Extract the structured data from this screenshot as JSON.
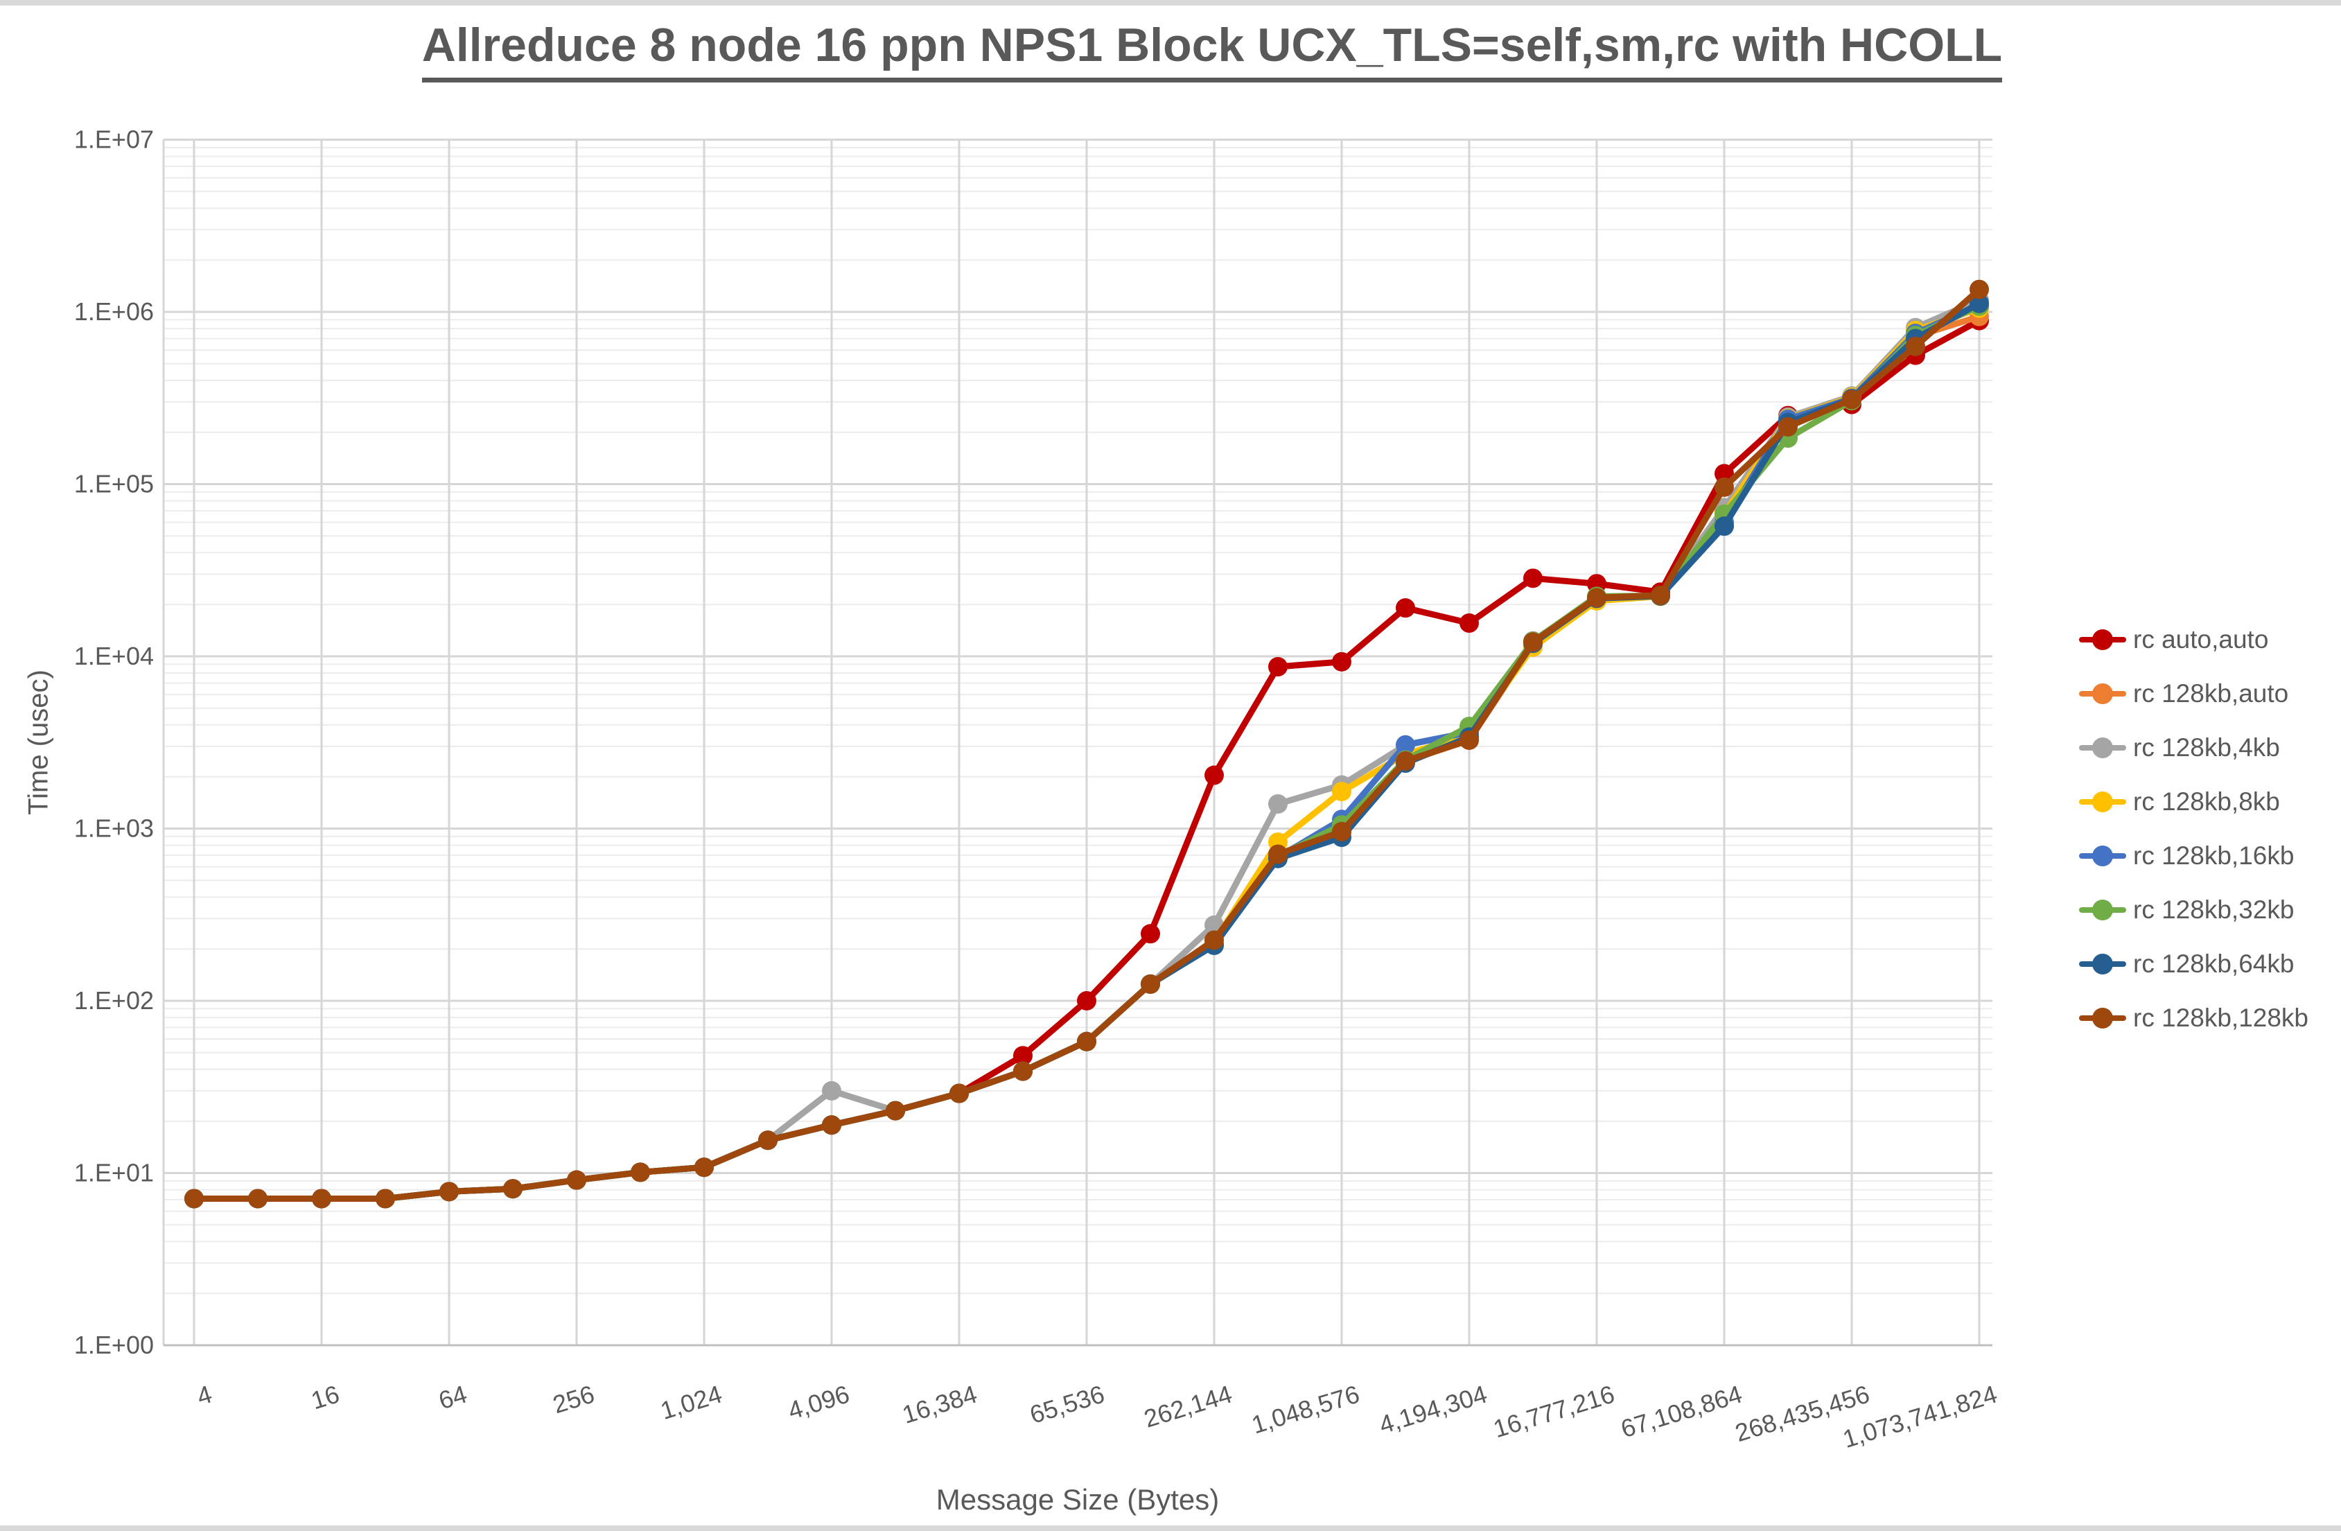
{
  "chart_data": {
    "type": "line",
    "title": "Allreduce 8 node 16 ppn NPS1 Block UCX_TLS=self,sm,rc with HCOLL",
    "xlabel": "Message Size (Bytes)",
    "ylabel": "Time (usec)",
    "x_scale": "log2",
    "y_scale": "log10",
    "ylim": [
      1,
      10000000
    ],
    "grid": "major horizontal+vertical, minor log horizontal",
    "legend_position": "right",
    "x": [
      4,
      8,
      16,
      32,
      64,
      128,
      256,
      512,
      1024,
      2048,
      4096,
      8192,
      16384,
      32768,
      65536,
      131072,
      262144,
      524288,
      1048576,
      2097152,
      4194304,
      8388608,
      16777216,
      33554432,
      67108864,
      134217728,
      268435456,
      536870912,
      1073741824
    ],
    "x_tick_values": [
      4,
      16,
      64,
      256,
      1024,
      4096,
      16384,
      65536,
      262144,
      1048576,
      4194304,
      16777216,
      67108864,
      268435456,
      1073741824
    ],
    "x_tick_labels": [
      "4",
      "16",
      "64",
      "256",
      "1,024",
      "4,096",
      "16,384",
      "65,536",
      "262,144",
      "1,048,576",
      "4,194,304",
      "16,777,216",
      "67,108,864",
      "268,435,456",
      "1,073,741,824"
    ],
    "y_tick_labels": [
      "1.E+00",
      "1.E+01",
      "1.E+02",
      "1.E+03",
      "1.E+04",
      "1.E+05",
      "1.E+06",
      "1.E+07"
    ],
    "series": [
      {
        "name": "rc auto,auto",
        "color": "#C00000",
        "values": [
          7.1,
          7.1,
          7.1,
          7.1,
          7.8,
          8.1,
          9.1,
          10.1,
          10.8,
          15.5,
          19,
          23,
          29,
          48,
          100,
          245,
          2040,
          8700,
          9300,
          19100,
          15600,
          28400,
          26400,
          23600,
          115000,
          250000,
          290000,
          560000,
          890000
        ]
      },
      {
        "name": "rc 128kb,auto",
        "color": "#ED7D31",
        "values": [
          7.1,
          7.1,
          7.1,
          7.1,
          7.8,
          8.1,
          9.1,
          10.1,
          10.8,
          15.5,
          19,
          23,
          29,
          39,
          58,
          125,
          215,
          700,
          950,
          2450,
          3260,
          11800,
          21800,
          22400,
          70000,
          225000,
          318000,
          720000,
          940000
        ]
      },
      {
        "name": "rc 128kb,4kb",
        "color": "#A5A5A5",
        "values": [
          7.1,
          7.1,
          7.1,
          7.1,
          7.8,
          8.1,
          9.1,
          10.1,
          10.8,
          15.5,
          30,
          23,
          29,
          39,
          58,
          125,
          275,
          1390,
          1790,
          3050,
          3620,
          12300,
          21900,
          22500,
          73000,
          245000,
          325000,
          810000,
          1170000
        ]
      },
      {
        "name": "rc 128kb,8kb",
        "color": "#FFC000",
        "values": [
          7.1,
          7.1,
          7.1,
          7.1,
          7.8,
          8.1,
          9.1,
          10.1,
          10.8,
          15.5,
          19,
          23,
          29,
          39,
          58,
          125,
          220,
          834,
          1640,
          2700,
          3500,
          11300,
          21000,
          22300,
          67000,
          240000,
          320000,
          780000,
          1050000
        ]
      },
      {
        "name": "rc 128kb,16kb",
        "color": "#4472C4",
        "values": [
          7.1,
          7.1,
          7.1,
          7.1,
          7.8,
          8.1,
          9.1,
          10.1,
          10.8,
          15.5,
          19,
          23,
          29,
          39,
          58,
          125,
          212,
          680,
          1130,
          3060,
          3620,
          12000,
          21900,
          22500,
          60000,
          238000,
          315000,
          750000,
          1100000
        ]
      },
      {
        "name": "rc 128kb,32kb",
        "color": "#70AD47",
        "values": [
          7.1,
          7.1,
          7.1,
          7.1,
          7.8,
          8.1,
          9.1,
          10.1,
          10.8,
          15.5,
          19,
          23,
          29,
          39,
          58,
          125,
          210,
          690,
          1050,
          2500,
          3920,
          12200,
          22300,
          22500,
          67000,
          185000,
          305000,
          730000,
          1080000
        ]
      },
      {
        "name": "rc 128kb,64kb",
        "color": "#255E91",
        "values": [
          7.1,
          7.1,
          7.1,
          7.1,
          7.8,
          8.1,
          9.1,
          10.1,
          10.8,
          15.5,
          19,
          23,
          29,
          39,
          58,
          125,
          210,
          670,
          890,
          2400,
          3400,
          11900,
          21700,
          22400,
          57000,
          228000,
          312000,
          700000,
          1120000
        ]
      },
      {
        "name": "rc 128kb,128kb",
        "color": "#9E480E",
        "values": [
          7.1,
          7.1,
          7.1,
          7.1,
          7.8,
          8.1,
          9.1,
          10.1,
          10.8,
          15.5,
          19,
          23,
          29,
          39,
          58,
          125,
          225,
          710,
          960,
          2470,
          3260,
          12100,
          21900,
          22600,
          96000,
          215000,
          310000,
          630000,
          1350000
        ]
      }
    ]
  },
  "colors": {
    "text": "#595959",
    "major_grid": "#d6d6d6",
    "minor_grid": "#ececec",
    "axis_line": "#bfbfbf"
  }
}
